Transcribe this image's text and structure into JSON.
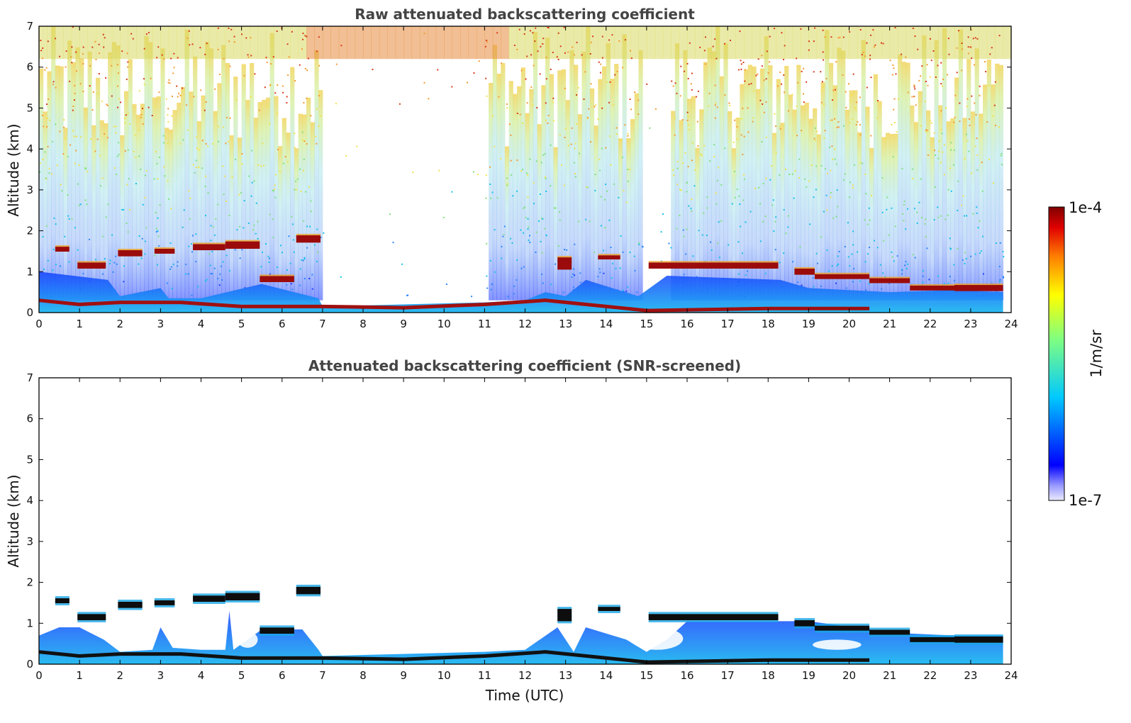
{
  "chart_data": [
    {
      "type": "heatmap",
      "title": "Raw attenuated backscattering coefficient",
      "xlabel": "",
      "ylabel": "Altitude (km)",
      "xlim": [
        0,
        24
      ],
      "ylim": [
        0,
        7
      ],
      "xticks": [
        0,
        1,
        2,
        3,
        4,
        5,
        6,
        7,
        8,
        9,
        10,
        11,
        12,
        13,
        14,
        15,
        16,
        17,
        18,
        19,
        20,
        21,
        22,
        23,
        24
      ],
      "yticks": [
        0,
        1,
        2,
        3,
        4,
        5,
        6,
        7
      ],
      "cloud_layers": [
        {
          "x0": 0.4,
          "x1": 0.75,
          "alt": 1.55,
          "thick": 0.12
        },
        {
          "x0": 0.95,
          "x1": 1.65,
          "alt": 1.15,
          "thick": 0.15
        },
        {
          "x0": 1.95,
          "x1": 2.55,
          "alt": 1.45,
          "thick": 0.15
        },
        {
          "x0": 2.85,
          "x1": 3.35,
          "alt": 1.5,
          "thick": 0.12
        },
        {
          "x0": 3.8,
          "x1": 4.6,
          "alt": 1.6,
          "thick": 0.15
        },
        {
          "x0": 4.6,
          "x1": 5.45,
          "alt": 1.65,
          "thick": 0.18
        },
        {
          "x0": 5.45,
          "x1": 6.3,
          "alt": 0.82,
          "thick": 0.15
        },
        {
          "x0": 6.35,
          "x1": 6.95,
          "alt": 1.8,
          "thick": 0.18
        },
        {
          "x0": 12.8,
          "x1": 13.15,
          "alt": 1.2,
          "thick": 0.3
        },
        {
          "x0": 13.8,
          "x1": 14.35,
          "alt": 1.35,
          "thick": 0.1
        },
        {
          "x0": 15.05,
          "x1": 18.25,
          "alt": 1.15,
          "thick": 0.15
        },
        {
          "x0": 18.65,
          "x1": 19.15,
          "alt": 1.0,
          "thick": 0.15
        },
        {
          "x0": 19.15,
          "x1": 20.5,
          "alt": 0.88,
          "thick": 0.12
        },
        {
          "x0": 20.5,
          "x1": 21.5,
          "alt": 0.78,
          "thick": 0.12
        },
        {
          "x0": 21.5,
          "x1": 22.6,
          "alt": 0.6,
          "thick": 0.12
        },
        {
          "x0": 22.6,
          "x1": 23.8,
          "alt": 0.6,
          "thick": 0.15
        }
      ],
      "boundary_layer": [
        {
          "x": 0,
          "alt": 0.3
        },
        {
          "x": 1,
          "alt": 0.2
        },
        {
          "x": 2,
          "alt": 0.25
        },
        {
          "x": 3.5,
          "alt": 0.25
        },
        {
          "x": 5,
          "alt": 0.15
        },
        {
          "x": 7,
          "alt": 0.15
        },
        {
          "x": 9,
          "alt": 0.12
        },
        {
          "x": 11,
          "alt": 0.2
        },
        {
          "x": 12.5,
          "alt": 0.3
        },
        {
          "x": 15,
          "alt": 0.05
        },
        {
          "x": 18,
          "alt": 0.1
        },
        {
          "x": 20.5,
          "alt": 0.1
        }
      ]
    },
    {
      "type": "heatmap",
      "title": "Attenuated backscattering coefficient (SNR-screened)",
      "xlabel": "Time (UTC)",
      "ylabel": "Altitude (km)",
      "xlim": [
        0,
        24
      ],
      "ylim": [
        0,
        7
      ],
      "xticks": [
        0,
        1,
        2,
        3,
        4,
        5,
        6,
        7,
        8,
        9,
        10,
        11,
        12,
        13,
        14,
        15,
        16,
        17,
        18,
        19,
        20,
        21,
        22,
        23,
        24
      ],
      "yticks": [
        0,
        1,
        2,
        3,
        4,
        5,
        6,
        7
      ]
    }
  ],
  "colorbar": {
    "label": "1/m/sr",
    "max_label": "1e-4",
    "min_label": "1e-7",
    "scale": "log",
    "colors": [
      "#ebebff",
      "#0000ff",
      "#00c8ff",
      "#80ff80",
      "#ffff00",
      "#ff8000",
      "#e00000",
      "#800000"
    ]
  }
}
